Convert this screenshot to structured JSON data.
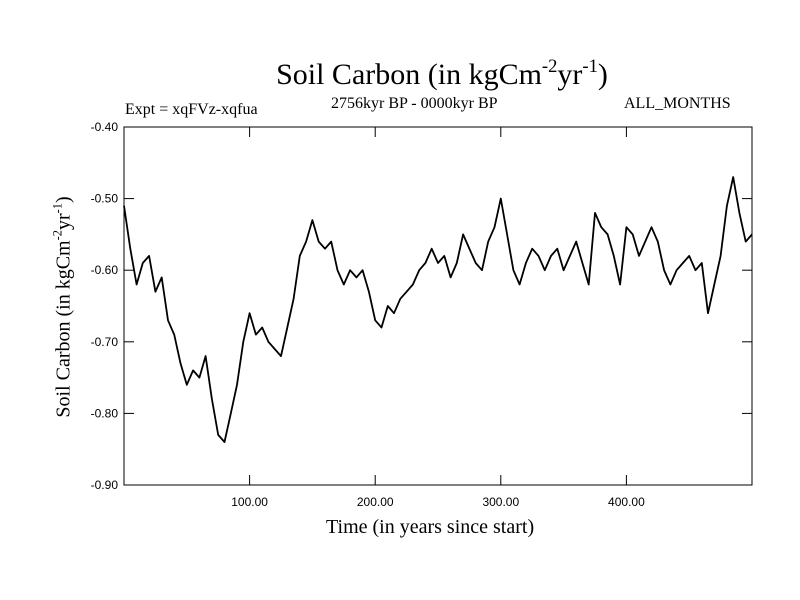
{
  "chart_data": {
    "type": "line",
    "title": {
      "main": "Soil Carbon (in kgCm",
      "sup1": "-2",
      "mid": "yr",
      "sup2": "-1",
      "end": ")"
    },
    "subtitle_left": "Expt = xqFVz-xqfua",
    "subtitle_center": "2756kyr BP - 0000kyr BP",
    "subtitle_right": "ALL_MONTHS",
    "xlabel": "Time (in years since start)",
    "ylabel": {
      "main": "Soil Carbon (in kgCm",
      "sup1": "-2",
      "mid": "yr",
      "sup2": "-1",
      "end": ")"
    },
    "xlim": [
      0,
      500
    ],
    "ylim": [
      -0.9,
      -0.4
    ],
    "x_ticks": [
      100,
      200,
      300,
      400
    ],
    "x_tick_labels": [
      "100.00",
      "200.00",
      "300.00",
      "400.00"
    ],
    "y_ticks": [
      -0.9,
      -0.8,
      -0.7,
      -0.6,
      -0.5,
      -0.4
    ],
    "y_tick_labels": [
      "-0.90",
      "-0.80",
      "-0.70",
      "-0.60",
      "-0.50",
      "-0.40"
    ],
    "series": [
      {
        "name": "Soil Carbon",
        "color": "#000000",
        "x": [
          0,
          5,
          10,
          15,
          20,
          25,
          30,
          35,
          40,
          45,
          50,
          55,
          60,
          65,
          70,
          75,
          80,
          85,
          90,
          95,
          100,
          105,
          110,
          115,
          120,
          125,
          130,
          135,
          140,
          145,
          150,
          155,
          160,
          165,
          170,
          175,
          180,
          185,
          190,
          195,
          200,
          205,
          210,
          215,
          220,
          225,
          230,
          235,
          240,
          245,
          250,
          255,
          260,
          265,
          270,
          275,
          280,
          285,
          290,
          295,
          300,
          305,
          310,
          315,
          320,
          325,
          330,
          335,
          340,
          345,
          350,
          355,
          360,
          365,
          370,
          375,
          380,
          385,
          390,
          395,
          400,
          405,
          410,
          415,
          420,
          425,
          430,
          435,
          440,
          445,
          450,
          455,
          460,
          465,
          470,
          475,
          480,
          485,
          490,
          495,
          500
        ],
        "values": [
          -0.51,
          -0.57,
          -0.62,
          -0.59,
          -0.58,
          -0.63,
          -0.61,
          -0.67,
          -0.69,
          -0.73,
          -0.76,
          -0.74,
          -0.75,
          -0.72,
          -0.78,
          -0.83,
          -0.84,
          -0.8,
          -0.76,
          -0.7,
          -0.66,
          -0.69,
          -0.68,
          -0.7,
          -0.71,
          -0.72,
          -0.68,
          -0.64,
          -0.58,
          -0.56,
          -0.53,
          -0.56,
          -0.57,
          -0.56,
          -0.6,
          -0.62,
          -0.6,
          -0.61,
          -0.6,
          -0.63,
          -0.67,
          -0.68,
          -0.65,
          -0.66,
          -0.64,
          -0.63,
          -0.62,
          -0.6,
          -0.59,
          -0.57,
          -0.59,
          -0.58,
          -0.61,
          -0.59,
          -0.55,
          -0.57,
          -0.59,
          -0.6,
          -0.56,
          -0.54,
          -0.5,
          -0.55,
          -0.6,
          -0.62,
          -0.59,
          -0.57,
          -0.58,
          -0.6,
          -0.58,
          -0.57,
          -0.6,
          -0.58,
          -0.56,
          -0.59,
          -0.62,
          -0.52,
          -0.54,
          -0.55,
          -0.58,
          -0.62,
          -0.54,
          -0.55,
          -0.58,
          -0.56,
          -0.54,
          -0.56,
          -0.6,
          -0.62,
          -0.6,
          -0.59,
          -0.58,
          -0.6,
          -0.59,
          -0.66,
          -0.62,
          -0.58,
          -0.51,
          -0.47,
          -0.52,
          -0.56,
          -0.55
        ]
      }
    ],
    "grid": false
  }
}
